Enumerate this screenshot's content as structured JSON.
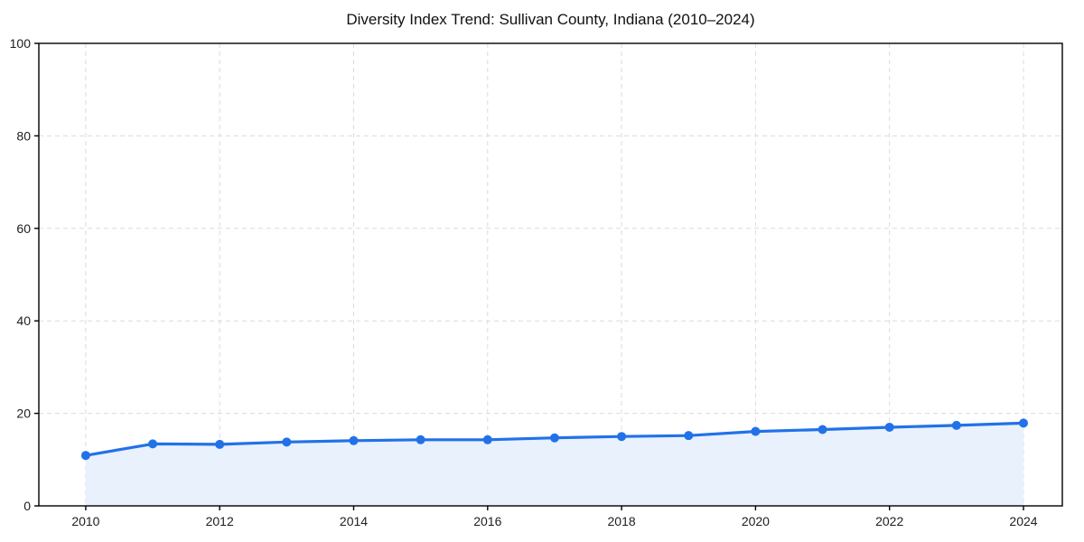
{
  "chart_data": {
    "type": "line",
    "title": "Diversity Index Trend: Sullivan County, Indiana (2010–2024)",
    "xlabel": "",
    "ylabel": "",
    "x": [
      2010,
      2011,
      2012,
      2013,
      2014,
      2015,
      2016,
      2017,
      2018,
      2019,
      2020,
      2021,
      2022,
      2023,
      2024
    ],
    "series": [
      {
        "name": "Diversity Index",
        "values": [
          10.9,
          13.4,
          13.3,
          13.8,
          14.1,
          14.3,
          14.3,
          14.7,
          15.0,
          15.2,
          16.1,
          16.5,
          17.0,
          17.4,
          17.9
        ]
      }
    ],
    "xlim": [
      2009.3,
      2024.58
    ],
    "ylim": [
      0,
      100
    ],
    "xticks": [
      2010,
      2012,
      2014,
      2016,
      2018,
      2020,
      2022,
      2024
    ],
    "yticks": [
      0,
      20,
      40,
      60,
      80,
      100
    ],
    "grid": true,
    "grid_style": "dashed",
    "legend": "none",
    "area_fill": true,
    "colors": {
      "line": "#2172e8",
      "marker": "#2172e8",
      "area_fill": "#e9f1fd",
      "grid": "#dcdcdc",
      "spine": "#000000",
      "tick_label": "#202020",
      "title": "#111111",
      "background": "#ffffff"
    },
    "marker": "circle",
    "marker_radius": 5,
    "line_width": 3.2
  },
  "layout_note": "single line chart with filled area, box spines, dashed gridlines"
}
